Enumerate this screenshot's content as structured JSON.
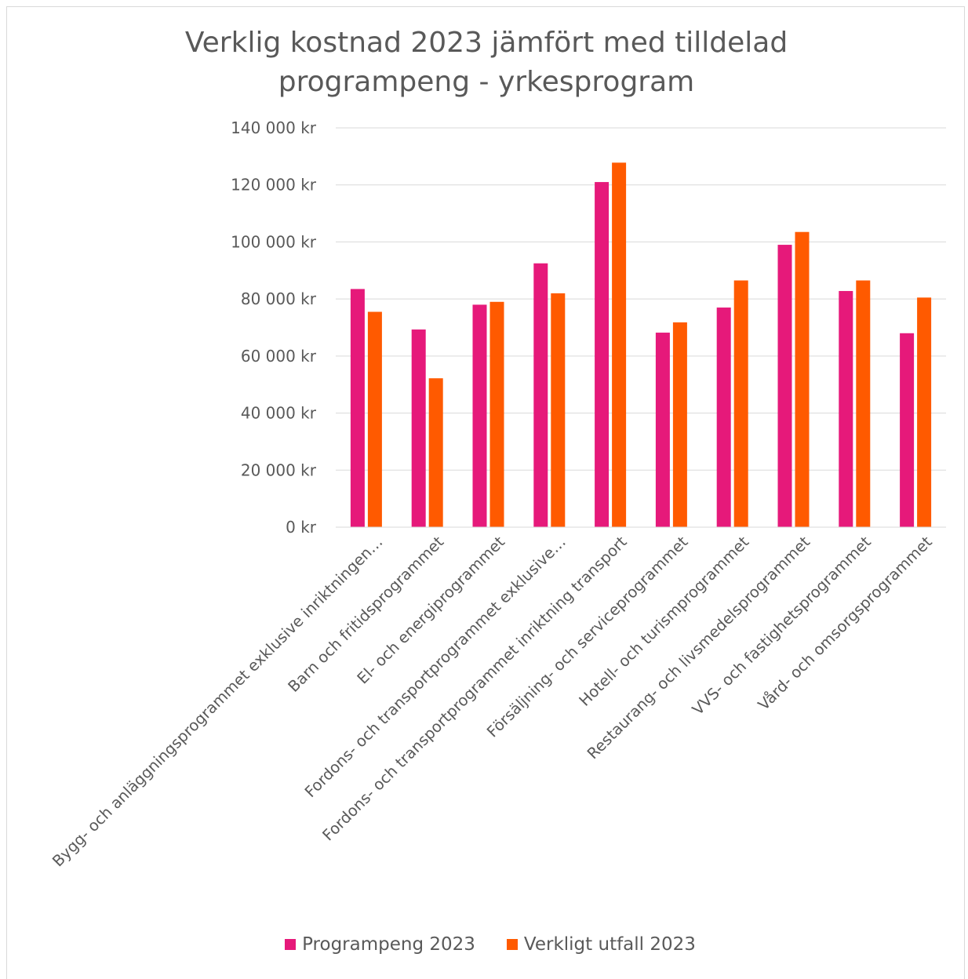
{
  "chart_data": {
    "type": "bar",
    "title_line1": "Verklig kostnad 2023 jämfört med tilldelad",
    "title_line2": "programpeng - yrkesprogram",
    "categories": [
      "Bygg- och anläggningsprogrammet exklusive inriktningen…",
      "Barn och fritidsprogrammet",
      "El- och energiprogrammet",
      "Fordons- och transportprogrammet exklusive…",
      "Fordons- och transportprogrammet inriktning transport",
      "Försäljning- och serviceprogrammet",
      "Hotell- och turismprogrammet",
      "Restaurang- och livsmedelsprogrammet",
      "VVS- och fastighetsprogrammet",
      "Vård- och omsorgsprogrammet"
    ],
    "series": [
      {
        "name": "Programpeng 2023",
        "color": "#e6197a",
        "values": [
          83500,
          69300,
          78000,
          92500,
          121000,
          68200,
          77000,
          99000,
          82800,
          68000
        ]
      },
      {
        "name": "Verkligt utfall 2023",
        "color": "#ff5a00",
        "values": [
          75500,
          52200,
          79000,
          82000,
          127800,
          71800,
          86500,
          103500,
          86500,
          80500
        ]
      }
    ],
    "ylim": [
      0,
      140000
    ],
    "yticks": [
      0,
      20000,
      40000,
      60000,
      80000,
      100000,
      120000,
      140000
    ],
    "ytick_labels": [
      "0 kr",
      "20 000 kr",
      "40 000 kr",
      "60 000 kr",
      "80 000 kr",
      "100 000 kr",
      "120 000 kr",
      "140 000 kr"
    ],
    "grid": true,
    "legend_position": "bottom"
  }
}
